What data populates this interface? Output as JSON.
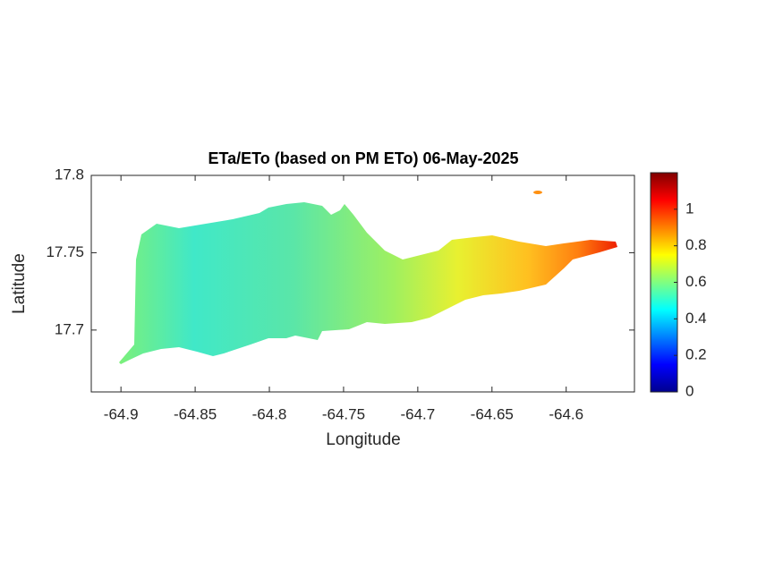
{
  "chart_data": {
    "type": "map",
    "title": "ETa/ETo (based on PM ETo) 06-May-2025",
    "xlabel": "Longitude",
    "ylabel": "Latitude",
    "xlim": [
      -64.92,
      -64.554
    ],
    "ylim": [
      17.66,
      17.8
    ],
    "xticks": [
      -64.9,
      -64.85,
      -64.8,
      -64.75,
      -64.7,
      -64.65,
      -64.6
    ],
    "yticks": [
      17.7,
      17.75,
      17.8
    ],
    "colormap": "jet",
    "clim": [
      0,
      1.2
    ],
    "cticks": [
      0,
      0.2,
      0.4,
      0.6,
      0.8,
      1
    ]
  }
}
